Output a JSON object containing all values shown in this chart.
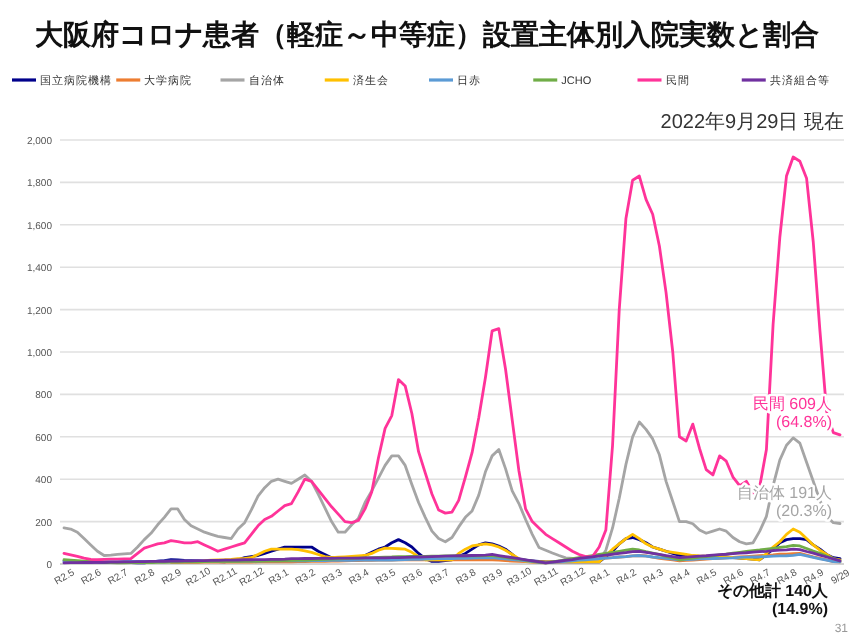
{
  "chart_data": {
    "type": "line",
    "title": "大阪府コロナ患者（軽症～中等症）設置主体別入院実数と割合",
    "legend": "top",
    "grid": "y",
    "marker": "none",
    "line_style": "solid",
    "ylim": [
      0,
      2000
    ],
    "yticks": [
      0,
      200,
      400,
      600,
      800,
      {
        "value": 1000,
        "label": "1,000"
      },
      {
        "value": 1200,
        "label": "1,200"
      },
      {
        "value": 1400,
        "label": "1,400"
      },
      {
        "value": 1600,
        "label": "1,600"
      },
      {
        "value": 1800,
        "label": "1,800"
      },
      {
        "value": 2000,
        "label": "2,000"
      }
    ],
    "categories": [
      "R2.5",
      null,
      null,
      null,
      "R2.6",
      null,
      null,
      null,
      "R2.7",
      null,
      null,
      null,
      "R2.8",
      null,
      null,
      null,
      "R2.9",
      null,
      null,
      null,
      "R2.10",
      null,
      null,
      null,
      "R2.11",
      null,
      null,
      null,
      "R2.12",
      null,
      null,
      null,
      "R3.1",
      null,
      null,
      null,
      "R3.2",
      null,
      null,
      null,
      "R3.3",
      null,
      null,
      null,
      "R3.4",
      null,
      null,
      null,
      "R3.5",
      null,
      null,
      null,
      "R3.6",
      null,
      null,
      null,
      "R3.7",
      null,
      null,
      null,
      "R3.8",
      null,
      null,
      null,
      "R3.9",
      null,
      null,
      null,
      "R3.10",
      null,
      null,
      null,
      "R3.11",
      null,
      null,
      null,
      "R3.12",
      null,
      null,
      null,
      "R4.1",
      null,
      null,
      null,
      "R4.2",
      null,
      null,
      null,
      "R4.3",
      null,
      null,
      null,
      "R4.4",
      null,
      null,
      null,
      "R4.5",
      null,
      null,
      null,
      "R4.6",
      null,
      null,
      null,
      "R4.7",
      null,
      null,
      null,
      "R4.8",
      null,
      null,
      null,
      "R4.9",
      null,
      null,
      null,
      "9/29"
    ],
    "series": [
      {
        "name": "国立病院機構",
        "color": "#00008b",
        "values": [
          15,
          14,
          12,
          11,
          10,
          9,
          8,
          7,
          7,
          6,
          6,
          5,
          5,
          9,
          13,
          16,
          20,
          19,
          17,
          16,
          15,
          14,
          12,
          11,
          10,
          15,
          20,
          30,
          35,
          40,
          50,
          60,
          70,
          80,
          80,
          80,
          80,
          80,
          60,
          45,
          30,
          30,
          30,
          30,
          30,
          40,
          55,
          70,
          80,
          100,
          115,
          100,
          80,
          50,
          25,
          12,
          13,
          16,
          20,
          35,
          50,
          70,
          90,
          100,
          95,
          85,
          70,
          45,
          20,
          18,
          15,
          12,
          10,
          10,
          10,
          10,
          10,
          10,
          10,
          10,
          10,
          35,
          60,
          95,
          120,
          125,
          115,
          100,
          80,
          70,
          60,
          50,
          40,
          38,
          37,
          36,
          35,
          34,
          33,
          31,
          30,
          28,
          25,
          23,
          20,
          45,
          70,
          100,
          115,
          120,
          120,
          115,
          90,
          70,
          45,
          30,
          25
        ]
      },
      {
        "name": "大学病院",
        "color": "#ed7d31",
        "values": [
          null,
          null,
          null,
          null,
          null,
          null,
          null,
          null,
          null,
          null,
          null,
          null,
          null,
          null,
          null,
          null,
          8,
          8,
          8,
          8,
          8,
          9,
          9,
          9,
          9,
          9,
          9,
          9,
          9,
          10,
          10,
          10,
          10,
          10,
          10,
          11,
          11,
          12,
          13,
          13,
          14,
          14,
          15,
          16,
          16,
          17,
          17,
          18,
          18,
          19,
          20,
          20,
          20,
          20,
          20,
          20,
          20,
          20,
          20,
          20,
          20,
          20,
          20,
          20,
          20,
          18,
          16,
          14,
          12,
          11,
          9,
          7,
          5,
          8,
          10,
          13,
          15,
          18,
          20,
          23,
          25,
          28,
          30,
          33,
          35,
          38,
          40,
          38,
          32,
          27,
          23,
          19,
          15,
          17,
          19,
          21,
          23,
          25,
          27,
          29,
          31,
          33,
          35,
          37,
          39,
          41,
          43,
          46,
          47,
          49,
          50,
          42,
          34,
          27,
          19,
          11,
          10
        ]
      },
      {
        "name": "自治体",
        "color": "#a5a5a5",
        "values": [
          170,
          165,
          150,
          120,
          90,
          60,
          40,
          42,
          45,
          48,
          50,
          80,
          115,
          145,
          185,
          220,
          260,
          260,
          210,
          180,
          165,
          150,
          140,
          130,
          125,
          120,
          165,
          195,
          255,
          320,
          360,
          390,
          400,
          390,
          380,
          400,
          420,
          390,
          330,
          265,
          200,
          150,
          150,
          185,
          215,
          290,
          345,
          405,
          465,
          510,
          510,
          465,
          375,
          290,
          220,
          155,
          120,
          105,
          125,
          175,
          220,
          250,
          325,
          435,
          510,
          540,
          450,
          345,
          285,
          210,
          140,
          78,
          65,
          52,
          40,
          29,
          26,
          23,
          21,
          19,
          16,
          65,
          170,
          310,
          470,
          600,
          670,
          635,
          590,
          515,
          390,
          295,
          200,
          200,
          190,
          160,
          145,
          155,
          165,
          155,
          125,
          105,
          95,
          100,
          155,
          225,
          370,
          490,
          560,
          595,
          570,
          480,
          390,
          300,
          225,
          195,
          191
        ]
      },
      {
        "name": "済生会",
        "color": "#ffc000",
        "values": [
          null,
          null,
          null,
          null,
          null,
          null,
          null,
          null,
          null,
          null,
          null,
          null,
          null,
          null,
          null,
          null,
          null,
          null,
          null,
          null,
          null,
          16,
          18,
          19,
          20,
          22,
          25,
          27,
          30,
          45,
          60,
          70,
          70,
          70,
          70,
          68,
          62,
          55,
          45,
          35,
          30,
          32,
          34,
          36,
          38,
          40,
          50,
          65,
          75,
          74,
          72,
          70,
          55,
          35,
          20,
          20,
          20,
          20,
          20,
          50,
          70,
          85,
          90,
          95,
          90,
          80,
          65,
          45,
          25,
          12,
          10,
          10,
          10,
          10,
          10,
          10,
          10,
          10,
          10,
          10,
          10,
          40,
          70,
          95,
          120,
          140,
          120,
          95,
          80,
          70,
          60,
          55,
          50,
          45,
          40,
          38,
          37,
          35,
          34,
          33,
          30,
          28,
          25,
          22,
          20,
          50,
          80,
          105,
          140,
          165,
          150,
          120,
          90,
          65,
          45,
          25,
          20
        ]
      },
      {
        "name": "日赤",
        "color": "#5b9bd5",
        "values": [
          10,
          10,
          10,
          10,
          11,
          11,
          11,
          11,
          11,
          12,
          12,
          12,
          12,
          12,
          12,
          13,
          13,
          13,
          13,
          13,
          13,
          13,
          14,
          14,
          14,
          14,
          14,
          14,
          14,
          14,
          15,
          15,
          15,
          15,
          15,
          15,
          15,
          16,
          16,
          16,
          17,
          17,
          17,
          17,
          18,
          18,
          18,
          19,
          19,
          19,
          20,
          21,
          22,
          22,
          23,
          24,
          25,
          25,
          26,
          27,
          27,
          28,
          29,
          29,
          30,
          27,
          24,
          21,
          18,
          15,
          11,
          8,
          5,
          8,
          10,
          13,
          15,
          18,
          20,
          23,
          25,
          28,
          30,
          33,
          35,
          38,
          40,
          37,
          33,
          30,
          27,
          23,
          20,
          21,
          22,
          24,
          25,
          26,
          27,
          28,
          29,
          31,
          32,
          33,
          34,
          35,
          37,
          38,
          39,
          41,
          45,
          38,
          31,
          24,
          18,
          11,
          10
        ]
      },
      {
        "name": "JCHO",
        "color": "#70ad47",
        "values": [
          20,
          18,
          16,
          14,
          13,
          11,
          9,
          7,
          5,
          5,
          6,
          6,
          7,
          7,
          8,
          8,
          9,
          9,
          10,
          10,
          10,
          11,
          12,
          12,
          12,
          13,
          13,
          14,
          14,
          14,
          15,
          15,
          15,
          16,
          17,
          18,
          19,
          20,
          21,
          22,
          23,
          24,
          25,
          27,
          28,
          29,
          30,
          31,
          32,
          33,
          35,
          35,
          36,
          36,
          36,
          37,
          37,
          38,
          38,
          38,
          39,
          39,
          39,
          40,
          40,
          36,
          31,
          27,
          23,
          18,
          14,
          9,
          5,
          10,
          15,
          20,
          25,
          30,
          35,
          40,
          45,
          50,
          55,
          60,
          65,
          70,
          66,
          58,
          51,
          44,
          36,
          29,
          20,
          24,
          28,
          32,
          35,
          39,
          43,
          47,
          51,
          55,
          59,
          63,
          66,
          70,
          74,
          78,
          82,
          88,
          85,
          73,
          61,
          50,
          38,
          26,
          15
        ]
      },
      {
        "name": "民間",
        "color": "#ff3399",
        "values": [
          50,
          43,
          36,
          28,
          22,
          20,
          22,
          23,
          23,
          24,
          25,
          50,
          75,
          85,
          95,
          100,
          110,
          105,
          100,
          100,
          105,
          90,
          75,
          60,
          70,
          80,
          90,
          100,
          140,
          180,
          210,
          225,
          250,
          275,
          285,
          340,
          400,
          390,
          350,
          310,
          270,
          235,
          200,
          195,
          205,
          260,
          340,
          500,
          640,
          700,
          870,
          840,
          710,
          530,
          430,
          330,
          255,
          240,
          245,
          300,
          410,
          525,
          690,
          880,
          1100,
          1110,
          920,
          680,
          440,
          260,
          200,
          170,
          140,
          120,
          100,
          80,
          60,
          45,
          35,
          35,
          80,
          160,
          560,
          1200,
          1630,
          1810,
          1830,
          1720,
          1650,
          1500,
          1280,
          1000,
          600,
          580,
          660,
          545,
          445,
          420,
          510,
          485,
          410,
          370,
          390,
          335,
          365,
          540,
          1130,
          1540,
          1830,
          1920,
          1900,
          1820,
          1520,
          1100,
          720,
          620,
          609
        ]
      },
      {
        "name": "共済組合等",
        "color": "#7030a0",
        "values": [
          5,
          6,
          6,
          7,
          7,
          8,
          8,
          9,
          9,
          10,
          10,
          11,
          11,
          12,
          12,
          13,
          14,
          14,
          15,
          15,
          16,
          16,
          17,
          17,
          18,
          18,
          19,
          20,
          20,
          21,
          21,
          22,
          22,
          23,
          25,
          25,
          26,
          26,
          27,
          28,
          27,
          28,
          28,
          28,
          28,
          29,
          29,
          29,
          29,
          30,
          30,
          31,
          32,
          33,
          34,
          35,
          36,
          37,
          38,
          39,
          39,
          40,
          41,
          42,
          45,
          40,
          35,
          30,
          25,
          20,
          15,
          10,
          5,
          9,
          13,
          17,
          21,
          26,
          30,
          34,
          38,
          42,
          46,
          50,
          54,
          58,
          60,
          55,
          50,
          45,
          40,
          35,
          30,
          32,
          35,
          37,
          39,
          42,
          44,
          46,
          49,
          51,
          53,
          56,
          58,
          60,
          63,
          65,
          67,
          70,
          68,
          59,
          51,
          42,
          33,
          24,
          15
        ]
      }
    ],
    "annotations": [
      "2022年9月29日 現在",
      {
        "text": "民間 609人\n(64.8%)",
        "x": "9/29",
        "y": 609
      },
      {
        "text": "自治体 191人\n(20.3%)",
        "x": "9/29",
        "y": 191
      },
      "その他計 140人\n(14.9%)",
      "31"
    ]
  }
}
